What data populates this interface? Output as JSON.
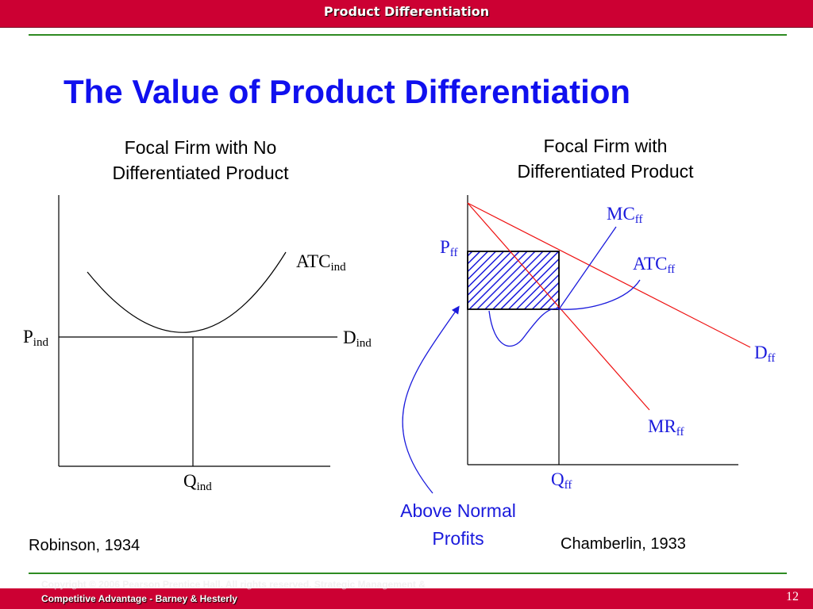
{
  "header": {
    "title": "Product Differentiation"
  },
  "slide": {
    "title": "The Value of Product Differentiation",
    "page_number": "12"
  },
  "left_panel": {
    "heading_line1": "Focal Firm with No",
    "heading_line2": "Differentiated Product",
    "labels": {
      "atc": {
        "main": "ATC",
        "sub": "ind"
      },
      "price": {
        "main": "P",
        "sub": "ind"
      },
      "demand": {
        "main": "D",
        "sub": "ind"
      },
      "quantity": {
        "main": "Q",
        "sub": "ind"
      }
    },
    "citation": "Robinson, 1934"
  },
  "right_panel": {
    "heading_line1": "Focal Firm with",
    "heading_line2": "Differentiated Product",
    "labels": {
      "mc": {
        "main": "MC",
        "sub": "ff"
      },
      "price": {
        "main": "P",
        "sub": "ff"
      },
      "atc": {
        "main": "ATC",
        "sub": "ff"
      },
      "demand": {
        "main": "D",
        "sub": "ff"
      },
      "mr": {
        "main": "MR",
        "sub": "ff"
      },
      "quantity": {
        "main": "Q",
        "sub": "ff"
      }
    },
    "annotation_line1": "Above Normal",
    "annotation_line2": "Profits",
    "citation": "Chamberlin, 1933"
  },
  "footer": {
    "line1": "Copyright © 2006 Pearson Prentice Hall. All rights reserved. Strategic Management &",
    "line2": "Competitive Advantage - Barney & Hesterly"
  },
  "colors": {
    "banner": "#cc0033",
    "rule": "#2e8b22",
    "title": "#1010ee",
    "curve_blue": "#1a1adc",
    "line_red": "#ee1111"
  }
}
